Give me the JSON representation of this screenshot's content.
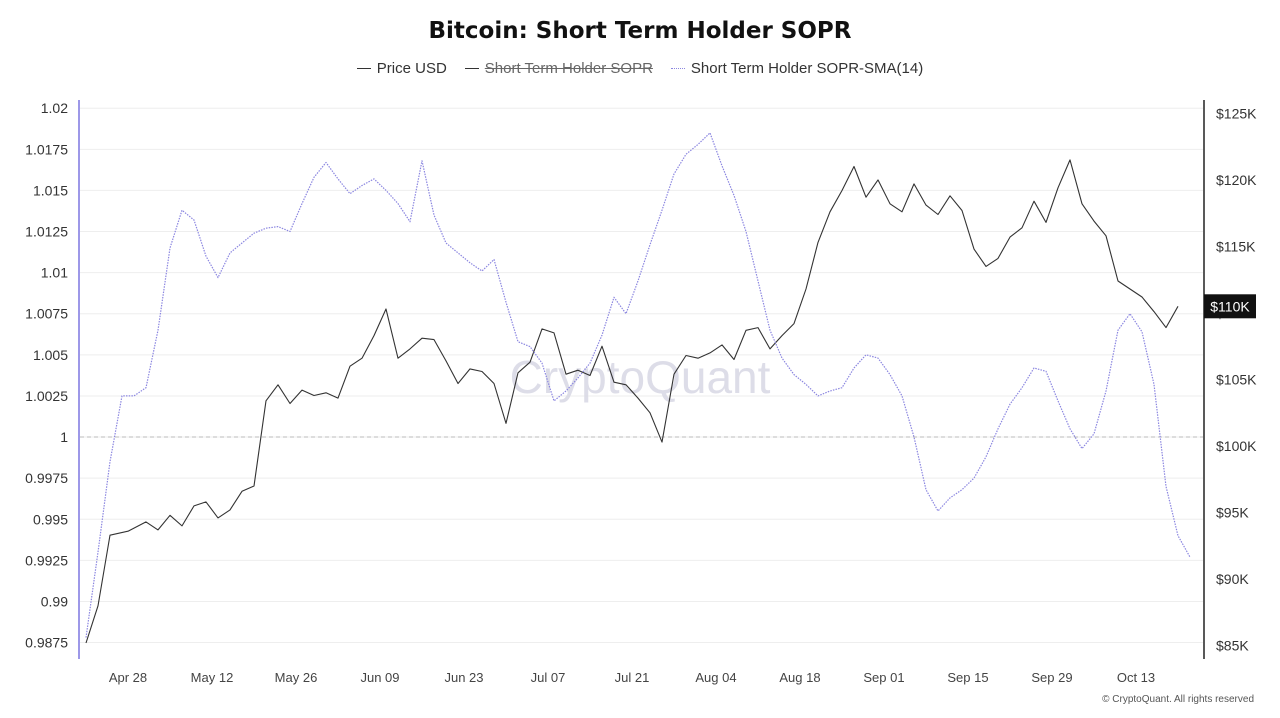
{
  "title": "Bitcoin: Short Term Holder SOPR",
  "legend": [
    {
      "label": "Price USD",
      "color": "#333333",
      "hidden": false
    },
    {
      "label": "Short Term Holder SOPR",
      "color": "#333333",
      "hidden": true
    },
    {
      "label": "Short Term Holder SOPR-SMA(14)",
      "color": "#8b86e0",
      "hidden": false
    }
  ],
  "watermark": "CryptoQuant",
  "footer": "© CryptoQuant. All rights reserved",
  "chart_data": {
    "type": "line",
    "title": "Bitcoin: Short Term Holder SOPR",
    "x_ticks": [
      "Apr 28",
      "May 12",
      "May 26",
      "Jun 09",
      "Jun 23",
      "Jul 07",
      "Jul 21",
      "Aug 04",
      "Aug 18",
      "Sep 01",
      "Sep 15",
      "Sep 29",
      "Oct 13"
    ],
    "left_axis": {
      "ticks": [
        "0.9875",
        "0.99",
        "0.9925",
        "0.995",
        "0.9975",
        "1",
        "1.0025",
        "1.005",
        "1.0075",
        "1.01",
        "1.0125",
        "1.015",
        "1.0175",
        "1.02"
      ],
      "range": [
        0.9865,
        1.0205
      ],
      "reference_line": 1.0
    },
    "right_axis": {
      "ticks": [
        "$85K",
        "$90K",
        "$95K",
        "$100K",
        "$105K",
        "$110K",
        "$115K",
        "$120K",
        "$125K"
      ],
      "range": [
        84000,
        126000
      ],
      "current_value_label": "$110K"
    },
    "x_range": [
      0,
      184
    ],
    "series": [
      {
        "name": "Price USD",
        "axis": "right",
        "color": "#333333",
        "points": [
          [
            0,
            85200
          ],
          [
            2,
            88000
          ],
          [
            4,
            93300
          ],
          [
            7,
            93600
          ],
          [
            10,
            94300
          ],
          [
            12,
            93700
          ],
          [
            14,
            94800
          ],
          [
            16,
            94000
          ],
          [
            18,
            95500
          ],
          [
            20,
            95800
          ],
          [
            22,
            94600
          ],
          [
            24,
            95200
          ],
          [
            26,
            96600
          ],
          [
            28,
            97000
          ],
          [
            30,
            103400
          ],
          [
            32,
            104600
          ],
          [
            34,
            103200
          ],
          [
            36,
            104200
          ],
          [
            38,
            103800
          ],
          [
            40,
            104000
          ],
          [
            42,
            103600
          ],
          [
            44,
            106000
          ],
          [
            46,
            106600
          ],
          [
            48,
            108300
          ],
          [
            50,
            110300
          ],
          [
            52,
            106600
          ],
          [
            54,
            107300
          ],
          [
            56,
            108100
          ],
          [
            58,
            108000
          ],
          [
            60,
            106400
          ],
          [
            62,
            104700
          ],
          [
            64,
            105800
          ],
          [
            66,
            105600
          ],
          [
            68,
            104700
          ],
          [
            70,
            101700
          ],
          [
            72,
            105500
          ],
          [
            74,
            106300
          ],
          [
            76,
            108800
          ],
          [
            78,
            108500
          ],
          [
            80,
            105400
          ],
          [
            82,
            105700
          ],
          [
            84,
            105300
          ],
          [
            86,
            107500
          ],
          [
            88,
            104800
          ],
          [
            90,
            104600
          ],
          [
            92,
            103600
          ],
          [
            94,
            102500
          ],
          [
            96,
            100300
          ],
          [
            98,
            105400
          ],
          [
            100,
            106800
          ],
          [
            102,
            106600
          ],
          [
            104,
            107000
          ],
          [
            106,
            107600
          ],
          [
            108,
            106500
          ],
          [
            110,
            108700
          ],
          [
            112,
            108900
          ],
          [
            114,
            107300
          ],
          [
            116,
            108300
          ],
          [
            118,
            109200
          ],
          [
            120,
            111800
          ],
          [
            122,
            115300
          ],
          [
            124,
            117600
          ],
          [
            126,
            119200
          ],
          [
            128,
            121000
          ],
          [
            130,
            118700
          ],
          [
            132,
            120000
          ],
          [
            134,
            118200
          ],
          [
            136,
            117600
          ],
          [
            138,
            119700
          ],
          [
            140,
            118100
          ],
          [
            142,
            117400
          ],
          [
            144,
            118800
          ],
          [
            146,
            117700
          ],
          [
            148,
            114800
          ],
          [
            150,
            113500
          ],
          [
            152,
            114100
          ],
          [
            154,
            115700
          ],
          [
            156,
            116400
          ],
          [
            158,
            118400
          ],
          [
            160,
            116800
          ],
          [
            162,
            119400
          ],
          [
            164,
            121500
          ],
          [
            166,
            118200
          ],
          [
            168,
            116900
          ],
          [
            170,
            115800
          ],
          [
            172,
            112400
          ],
          [
            174,
            111800
          ],
          [
            176,
            111200
          ],
          [
            178,
            110100
          ],
          [
            180,
            108900
          ],
          [
            182,
            110500
          ]
        ]
      },
      {
        "name": "Short Term Holder SOPR-SMA(14)",
        "axis": "left",
        "color": "#8b86e0",
        "points": [
          [
            0,
            0.9878
          ],
          [
            2,
            0.993
          ],
          [
            4,
            0.9985
          ],
          [
            6,
            1.0025
          ],
          [
            8,
            1.0025
          ],
          [
            10,
            1.003
          ],
          [
            12,
            1.0065
          ],
          [
            14,
            1.0115
          ],
          [
            16,
            1.0138
          ],
          [
            18,
            1.0132
          ],
          [
            20,
            1.011
          ],
          [
            22,
            1.0097
          ],
          [
            24,
            1.0112
          ],
          [
            26,
            1.0118
          ],
          [
            28,
            1.0124
          ],
          [
            30,
            1.0127
          ],
          [
            32,
            1.0128
          ],
          [
            34,
            1.0125
          ],
          [
            36,
            1.0142
          ],
          [
            38,
            1.0158
          ],
          [
            40,
            1.0167
          ],
          [
            42,
            1.0157
          ],
          [
            44,
            1.0148
          ],
          [
            46,
            1.0153
          ],
          [
            48,
            1.0157
          ],
          [
            50,
            1.015
          ],
          [
            52,
            1.0142
          ],
          [
            54,
            1.0131
          ],
          [
            56,
            1.0168
          ],
          [
            58,
            1.0135
          ],
          [
            60,
            1.0118
          ],
          [
            62,
            1.0112
          ],
          [
            64,
            1.0106
          ],
          [
            66,
            1.0101
          ],
          [
            68,
            1.0108
          ],
          [
            70,
            1.0082
          ],
          [
            72,
            1.0058
          ],
          [
            74,
            1.0055
          ],
          [
            76,
            1.0045
          ],
          [
            78,
            1.0022
          ],
          [
            80,
            1.0028
          ],
          [
            82,
            1.0036
          ],
          [
            84,
            1.0045
          ],
          [
            86,
            1.0062
          ],
          [
            88,
            1.0085
          ],
          [
            90,
            1.0075
          ],
          [
            92,
            1.0095
          ],
          [
            94,
            1.0117
          ],
          [
            96,
            1.0138
          ],
          [
            98,
            1.016
          ],
          [
            100,
            1.0172
          ],
          [
            102,
            1.0178
          ],
          [
            104,
            1.0185
          ],
          [
            106,
            1.0165
          ],
          [
            108,
            1.0147
          ],
          [
            110,
            1.0125
          ],
          [
            112,
            1.0095
          ],
          [
            114,
            1.0065
          ],
          [
            116,
            1.0048
          ],
          [
            118,
            1.0038
          ],
          [
            120,
            1.0032
          ],
          [
            122,
            1.0025
          ],
          [
            124,
            1.0028
          ],
          [
            126,
            1.003
          ],
          [
            128,
            1.0042
          ],
          [
            130,
            1.005
          ],
          [
            132,
            1.0048
          ],
          [
            134,
            1.0038
          ],
          [
            136,
            1.0025
          ],
          [
            138,
            1.0
          ],
          [
            140,
            0.9968
          ],
          [
            142,
            0.9955
          ],
          [
            144,
            0.9963
          ],
          [
            146,
            0.9968
          ],
          [
            148,
            0.9975
          ],
          [
            150,
            0.9988
          ],
          [
            152,
            1.0005
          ],
          [
            154,
            1.002
          ],
          [
            156,
            1.003
          ],
          [
            158,
            1.0042
          ],
          [
            160,
            1.004
          ],
          [
            162,
            1.0022
          ],
          [
            164,
            1.0005
          ],
          [
            166,
            0.9993
          ],
          [
            168,
            1.0002
          ],
          [
            170,
            1.0028
          ],
          [
            172,
            1.0065
          ],
          [
            174,
            1.0075
          ],
          [
            176,
            1.0064
          ],
          [
            178,
            1.0032
          ],
          [
            180,
            0.997
          ],
          [
            182,
            0.994
          ],
          [
            184,
            0.9927
          ]
        ]
      }
    ]
  }
}
